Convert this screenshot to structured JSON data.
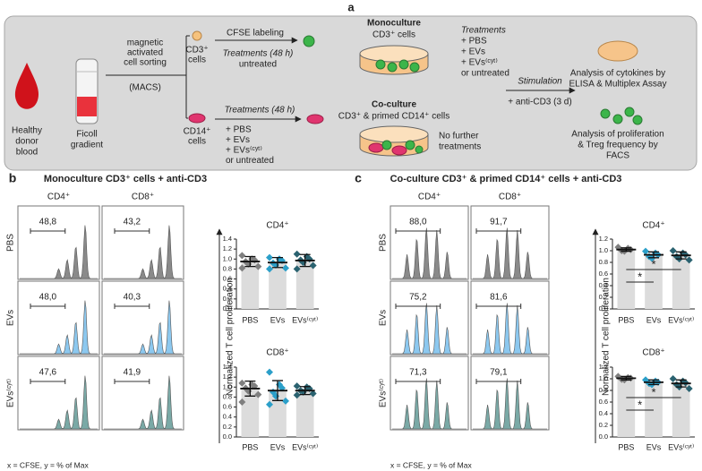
{
  "panel_a": {
    "label": "a",
    "donor": [
      "Healthy",
      "donor",
      "blood"
    ],
    "ficoll": [
      "Ficoll",
      "gradient"
    ],
    "macs": [
      "magnetic",
      "activated",
      "cell sorting",
      "(MACS)"
    ],
    "cd3_cells": [
      "CD3⁺",
      "cells"
    ],
    "cfse": "CFSE labeling",
    "cd3_treatment": "Treatments (48 h)",
    "cd3_untreated": "untreated",
    "cd14_cells": [
      "CD14⁺",
      "cells"
    ],
    "cd14_treatment": "Treatments (48 h)",
    "cd14_options": [
      "+ PBS",
      "+ EVs",
      "+ EVs⁽ᶜʸᵗ⁾",
      "or untreated"
    ],
    "mono_title": "Monoculture",
    "mono_cells": "CD3⁺ cells",
    "mono_treatment": "Treatments",
    "mono_options": [
      "+ PBS",
      "+ EVs",
      "+ EVs⁽ᶜʸᵗ⁾",
      "or untreated"
    ],
    "co_title": "Co-culture",
    "co_cells": "CD3⁺ & primed CD14⁺ cells",
    "co_note": [
      "No further",
      "treatments"
    ],
    "stimulation": "Stimulation",
    "stimulus": "+ anti-CD3 (3 d)",
    "cytokines": [
      "Analysis of cytokines by",
      "ELISA & Multiplex Assay"
    ],
    "facs": [
      "Analysis of proliferation",
      "& Treg frequency by",
      "FACS"
    ]
  },
  "panels": [
    {
      "label": "b",
      "title": "Monoculture CD3⁺ cells + anti-CD3",
      "histograms": {
        "columns": [
          "CD4⁺",
          "CD8⁺"
        ],
        "rows": [
          "PBS",
          "EVs",
          "EVs⁽ᶜʸᵗ⁾"
        ],
        "gates": [
          [
            "48,8",
            "43,2"
          ],
          [
            "48,0",
            "40,3"
          ],
          [
            "47,6",
            "41,9"
          ]
        ],
        "colors": [
          "#8a8a8a",
          "#8cc8ef",
          "#7aa9a6"
        ],
        "footer": "x = CFSE, y = % of Max"
      },
      "y_axis_label": "Normalized T cell proliferation",
      "plots": [
        {
          "type": "dot-bar",
          "title": "CD4⁺",
          "categories": [
            "PBS",
            "EVs",
            "EVs⁽ᶜʸᵗ⁾"
          ],
          "ylim": [
            0,
            1.4
          ],
          "yticks": [
            {
              "value": 0,
              "label": "0.0"
            },
            0.2,
            0.4,
            0.6,
            0.8,
            {
              "value": 1,
              "label": "1.0"
            },
            1.2,
            1.4
          ],
          "colors": [
            "#7f7f7f",
            "#2b9fc9",
            "#2a6270"
          ],
          "bar_color": "#dcdcdc",
          "values": [
            0.95,
            0.93,
            0.97
          ],
          "errors": [
            0.1,
            0.1,
            0.12
          ],
          "points": [
            [
              1.07,
              1.0,
              0.98,
              0.95,
              0.9,
              0.85,
              0.82
            ],
            [
              1.03,
              1.0,
              0.97,
              0.92,
              0.88,
              0.82,
              0.8
            ],
            [
              1.1,
              1.05,
              1.0,
              0.98,
              0.93,
              0.87,
              0.8
            ]
          ],
          "significance": []
        },
        {
          "type": "dot-bar",
          "title": "CD8⁺",
          "categories": [
            "PBS",
            "EVs",
            "EVs⁽ᶜʸᵗ⁾"
          ],
          "ylim": [
            0,
            1.4
          ],
          "yticks": [
            {
              "value": 0,
              "label": "0.0"
            },
            0.2,
            0.4,
            0.6,
            0.8,
            {
              "value": 1,
              "label": "1.0"
            },
            1.2,
            1.4
          ],
          "colors": [
            "#7f7f7f",
            "#2b9fc9",
            "#2a6270"
          ],
          "bar_color": "#dcdcdc",
          "values": [
            0.97,
            0.93,
            0.93
          ],
          "errors": [
            0.15,
            0.2,
            0.08
          ],
          "points": [
            [
              1.08,
              1.05,
              1.02,
              0.98,
              0.92,
              0.85,
              0.7
            ],
            [
              1.3,
              1.05,
              0.98,
              0.9,
              0.82,
              0.72,
              0.65
            ],
            [
              1.02,
              1.0,
              0.97,
              0.93,
              0.9,
              0.87,
              0.84
            ]
          ],
          "significance": []
        }
      ]
    },
    {
      "label": "c",
      "title": "Co-culture CD3⁺ & primed CD14⁺ cells + anti-CD3",
      "histograms": {
        "columns": [
          "CD4⁺",
          "CD8⁺"
        ],
        "rows": [
          "PBS",
          "EVs",
          "EVs⁽ᶜʸᵗ⁾"
        ],
        "gates": [
          [
            "88,0",
            "91,7"
          ],
          [
            "75,2",
            "81,6"
          ],
          [
            "71,3",
            "79,1"
          ]
        ],
        "colors": [
          "#8a8a8a",
          "#8cc8ef",
          "#7aa9a6"
        ],
        "footer": "x = CFSE, y = % of Max"
      },
      "y_axis_label": "Normalized T cell proliferation",
      "plots": [
        {
          "type": "dot-bar",
          "title": "CD4⁺",
          "categories": [
            "PBS",
            "EVs",
            "EVs⁽ᶜʸᵗ⁾"
          ],
          "ylim": [
            0,
            1.2
          ],
          "yticks": [
            {
              "value": 0,
              "label": "0.0"
            },
            0.2,
            0.4,
            0.6,
            0.8,
            {
              "value": 1,
              "label": "1.0"
            },
            1.2
          ],
          "colors": [
            "#7f7f7f",
            "#2b9fc9",
            "#2a6270"
          ],
          "bar_color": "#dcdcdc",
          "values": [
            1.02,
            0.93,
            0.92
          ],
          "errors": [
            0.03,
            0.05,
            0.06
          ],
          "points": [
            [
              1.06,
              1.04,
              1.02,
              1.0,
              0.99
            ],
            [
              0.99,
              0.96,
              0.93,
              0.9,
              0.87
            ],
            [
              1.0,
              0.96,
              0.93,
              0.9,
              0.86,
              0.84
            ]
          ],
          "significance": [
            "*",
            "*"
          ]
        },
        {
          "type": "dot-bar",
          "title": "CD8⁺",
          "categories": [
            "PBS",
            "EVs",
            "EVs⁽ᶜʸᵗ⁾"
          ],
          "ylim": [
            0,
            1.2
          ],
          "yticks": [
            {
              "value": 0,
              "label": "0.0"
            },
            0.2,
            0.4,
            0.6,
            0.8,
            {
              "value": 1,
              "label": "1.0"
            },
            1.2
          ],
          "colors": [
            "#7f7f7f",
            "#2b9fc9",
            "#2a6270"
          ],
          "bar_color": "#dcdcdc",
          "values": [
            1.01,
            0.94,
            0.92
          ],
          "errors": [
            0.03,
            0.04,
            0.06
          ],
          "points": [
            [
              1.04,
              1.02,
              1.01,
              0.99,
              0.98
            ],
            [
              0.98,
              0.96,
              0.94,
              0.92,
              0.9
            ],
            [
              1.0,
              0.96,
              0.93,
              0.9,
              0.86,
              0.83
            ]
          ],
          "significance": [
            "*",
            "*"
          ]
        }
      ]
    }
  ]
}
